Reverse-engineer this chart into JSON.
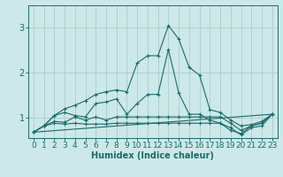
{
  "xlabel": "Humidex (Indice chaleur)",
  "ylabel": "",
  "xlim": [
    -0.5,
    23.5
  ],
  "ylim": [
    0.55,
    3.5
  ],
  "yticks": [
    1,
    2,
    3
  ],
  "xticks": [
    0,
    1,
    2,
    3,
    4,
    5,
    6,
    7,
    8,
    9,
    10,
    11,
    12,
    13,
    14,
    15,
    16,
    17,
    18,
    19,
    20,
    21,
    22,
    23
  ],
  "bg_color": "#cce8e8",
  "grid_color": "#b0d0d0",
  "line_color": "#1a6b6b",
  "series": [
    [
      0.68,
      0.82,
      1.05,
      1.2,
      1.28,
      1.38,
      1.52,
      1.58,
      1.62,
      1.58,
      2.22,
      2.38,
      2.38,
      3.05,
      2.75,
      2.12,
      1.95,
      1.18,
      1.12,
      0.95,
      0.82,
      0.85,
      0.92,
      1.08
    ],
    [
      0.68,
      0.82,
      1.05,
      1.12,
      1.05,
      1.02,
      1.32,
      1.35,
      1.42,
      1.08,
      1.32,
      1.52,
      1.52,
      2.52,
      1.55,
      1.08,
      1.08,
      0.95,
      0.88,
      0.72,
      0.65,
      0.82,
      0.88,
      1.08
    ],
    [
      0.68,
      0.82,
      0.92,
      0.9,
      1.02,
      0.95,
      1.02,
      0.95,
      1.02,
      1.02,
      1.02,
      1.02,
      1.02,
      1.02,
      1.02,
      1.02,
      1.02,
      1.02,
      1.02,
      0.88,
      0.72,
      0.82,
      0.88,
      1.08
    ],
    [
      0.68,
      0.82,
      0.88,
      0.86,
      0.88,
      0.86,
      0.86,
      0.86,
      0.88,
      0.88,
      0.88,
      0.88,
      0.88,
      0.88,
      0.88,
      0.88,
      0.88,
      0.88,
      0.88,
      0.78,
      0.62,
      0.78,
      0.82,
      1.08
    ]
  ],
  "trend_line": [
    [
      0,
      0.68
    ],
    [
      23,
      1.08
    ]
  ],
  "fontsize_xlabel": 7,
  "fontsize_tick": 6.5
}
